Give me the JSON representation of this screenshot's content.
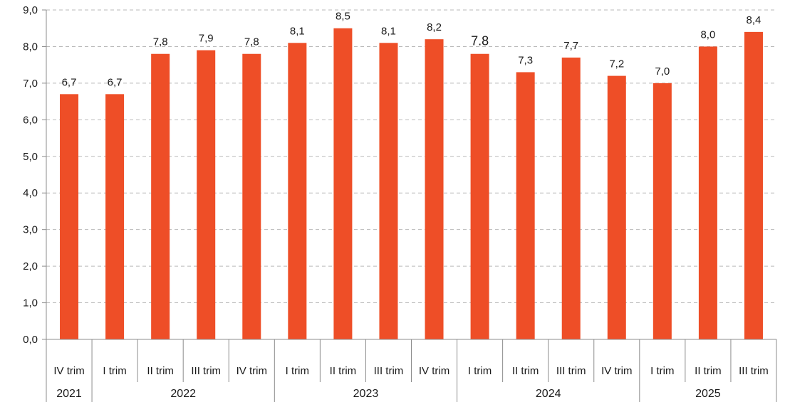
{
  "chart_data": {
    "type": "bar",
    "title": "",
    "xlabel": "",
    "ylabel": "",
    "ylim": [
      0,
      9
    ],
    "yticks": [
      "0,0",
      "1,0",
      "2,0",
      "3,0",
      "4,0",
      "5,0",
      "6,0",
      "7,0",
      "8,0",
      "9,0"
    ],
    "grid": true,
    "legend": "none",
    "bar_color": "#EE4E27",
    "categories": [
      {
        "quarter": "IV trim",
        "year": "2021",
        "value": 6.7,
        "label": "6,7"
      },
      {
        "quarter": "I trim",
        "year": "2022",
        "value": 6.7,
        "label": "6,7"
      },
      {
        "quarter": "II trim",
        "year": "2022",
        "value": 7.8,
        "label": "7,8"
      },
      {
        "quarter": "III trim",
        "year": "2022",
        "value": 7.9,
        "label": "7,9"
      },
      {
        "quarter": "IV trim",
        "year": "2022",
        "value": 7.8,
        "label": "7,8"
      },
      {
        "quarter": "I trim",
        "year": "2023",
        "value": 8.1,
        "label": "8,1"
      },
      {
        "quarter": "II trim",
        "year": "2023",
        "value": 8.5,
        "label": "8,5"
      },
      {
        "quarter": "III trim",
        "year": "2023",
        "value": 8.1,
        "label": "8,1"
      },
      {
        "quarter": "IV trim",
        "year": "2023",
        "value": 8.2,
        "label": "8,2"
      },
      {
        "quarter": "I trim",
        "year": "2024",
        "value": 7.8,
        "label": "7.8"
      },
      {
        "quarter": "II trim",
        "year": "2024",
        "value": 7.3,
        "label": "7,3"
      },
      {
        "quarter": "III trim",
        "year": "2024",
        "value": 7.7,
        "label": "7,7"
      },
      {
        "quarter": "IV trim",
        "year": "2024",
        "value": 7.2,
        "label": "7,2"
      },
      {
        "quarter": "I trim",
        "year": "2025",
        "value": 7.0,
        "label": "7,0"
      },
      {
        "quarter": "II trim",
        "year": "2025",
        "value": 8.0,
        "label": "8,0"
      },
      {
        "quarter": "III trim",
        "year": "2025",
        "value": 8.4,
        "label": "8,4"
      }
    ],
    "years": [
      "2021",
      "2022",
      "2023",
      "2024",
      "2025"
    ]
  }
}
